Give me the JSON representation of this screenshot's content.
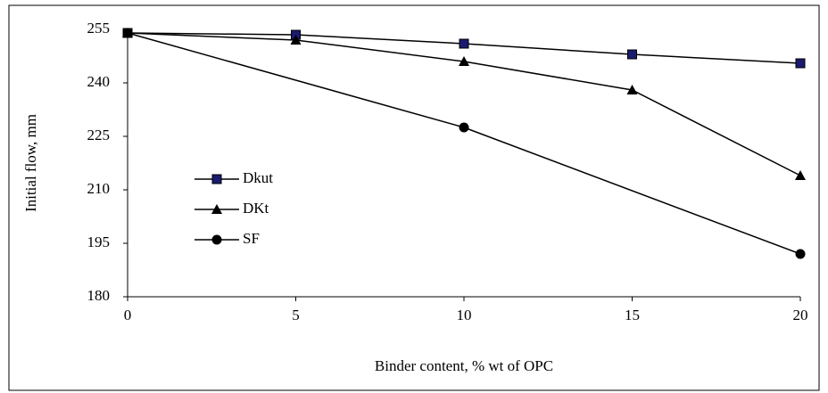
{
  "chart_data": {
    "type": "line",
    "x_label": "Binder content, % wt of OPC",
    "y_label": "Initial flow, mm",
    "x": [
      0,
      5,
      10,
      15,
      20
    ],
    "series": [
      {
        "name": "Dkut",
        "color": "#1a1a6e",
        "marker": "square",
        "values": [
          254,
          253.5,
          251,
          248,
          245.5
        ]
      },
      {
        "name": "DKt",
        "color": "#000000",
        "marker": "triangle",
        "values": [
          254,
          252,
          246,
          238,
          214
        ]
      },
      {
        "name": "SF",
        "color": "#000000",
        "marker": "circle",
        "x": [
          0,
          10,
          20
        ],
        "values": [
          254,
          227.5,
          192
        ]
      }
    ],
    "xlim": [
      0,
      20
    ],
    "xticks": [
      0,
      5,
      10,
      15,
      20
    ],
    "ylim": [
      180,
      255
    ],
    "yticks": [
      180,
      195,
      210,
      225,
      240,
      255
    ],
    "grid": false,
    "legend": "left"
  }
}
